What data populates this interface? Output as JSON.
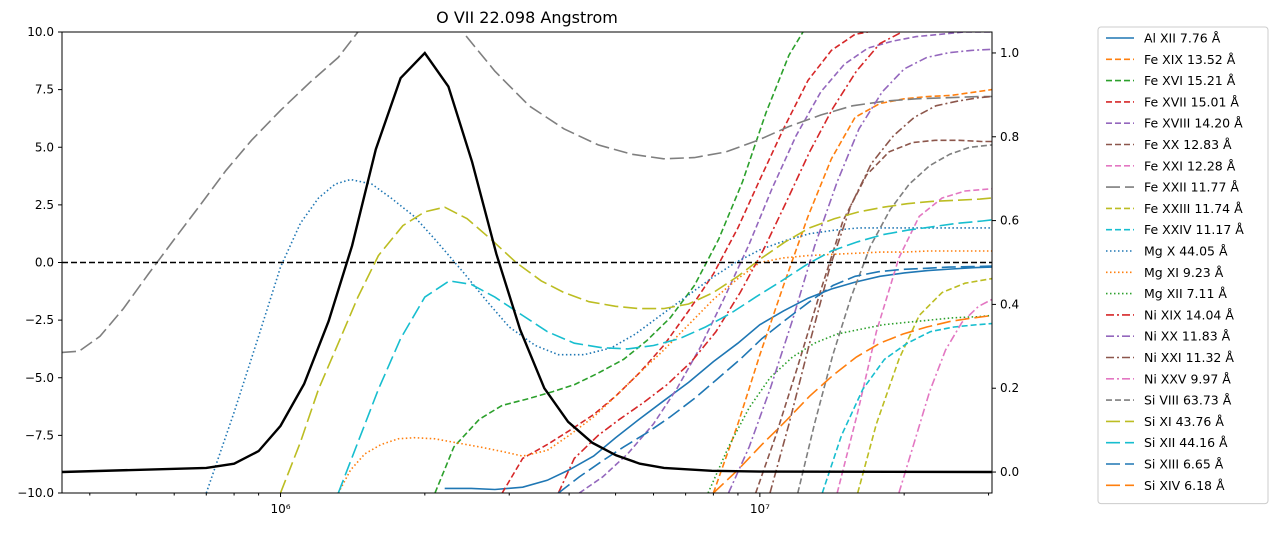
{
  "chart_data": {
    "type": "line",
    "title": "O VII 22.098 Angstrom",
    "xlabel": "",
    "ylabel": "",
    "xscale": "log",
    "xlim": [
      350000,
      30500000
    ],
    "ylim": [
      -10,
      10
    ],
    "y2lim": [
      -0.05,
      1.05
    ],
    "grid": false,
    "legend_placement": "outside-right",
    "x_ticks": [
      {
        "value": 1000000,
        "label": "10⁶"
      },
      {
        "value": 10000000,
        "label": "10⁷"
      }
    ],
    "y_ticks": [
      {
        "value": -10,
        "label": "−10.0"
      },
      {
        "value": -7.5,
        "label": "−7.5"
      },
      {
        "value": -5,
        "label": "−5.0"
      },
      {
        "value": -2.5,
        "label": "−2.5"
      },
      {
        "value": 0,
        "label": "0.0"
      },
      {
        "value": 2.5,
        "label": "2.5"
      },
      {
        "value": 5,
        "label": "5.0"
      },
      {
        "value": 7.5,
        "label": "7.5"
      },
      {
        "value": 10,
        "label": "10.0"
      }
    ],
    "y2_ticks": [
      {
        "value": 0,
        "label": "0.0"
      },
      {
        "value": 0.2,
        "label": "0.2"
      },
      {
        "value": 0.4,
        "label": "0.4"
      },
      {
        "value": 0.6,
        "label": "0.6"
      },
      {
        "value": 0.8,
        "label": "0.8"
      },
      {
        "value": 1.0,
        "label": "1.0"
      }
    ],
    "reference_line": {
      "y": 0,
      "style": "dashed",
      "color": "#000000"
    },
    "contribution_function": {
      "axis": "right",
      "color": "#000000",
      "x": [
        350000,
        700000,
        800000,
        900000,
        1000000,
        1120000,
        1260000,
        1410000,
        1580000,
        1780000,
        2000000,
        2240000,
        2510000,
        2820000,
        3160000,
        3550000,
        3980000,
        4470000,
        5010000,
        5620000,
        6310000,
        7940000,
        10000000,
        30500000
      ],
      "values": [
        0.0,
        0.01,
        0.02,
        0.05,
        0.11,
        0.21,
        0.36,
        0.54,
        0.77,
        0.94,
        1.0,
        0.92,
        0.74,
        0.52,
        0.34,
        0.2,
        0.12,
        0.07,
        0.04,
        0.02,
        0.01,
        0.003,
        0.001,
        0.0
      ]
    },
    "series": [
      {
        "name": "Al XII 7.76 Å",
        "color": "#1f77b4",
        "dash": "solid",
        "x": [
          2200000,
          2500000,
          2800000,
          3200000,
          3600000,
          4000000,
          4500000,
          5000000,
          5600000,
          6300000,
          7100000,
          8000000,
          9000000,
          10000000,
          11200000,
          12600000,
          14100000,
          15800000,
          17800000,
          20000000,
          22400000,
          25100000,
          28200000,
          30500000
        ],
        "values": [
          -9.8,
          -9.8,
          -9.85,
          -9.75,
          -9.45,
          -9.0,
          -8.4,
          -7.6,
          -6.8,
          -6.0,
          -5.2,
          -4.3,
          -3.5,
          -2.7,
          -2.1,
          -1.55,
          -1.15,
          -0.85,
          -0.6,
          -0.45,
          -0.35,
          -0.28,
          -0.22,
          -0.2
        ]
      },
      {
        "name": "Fe XIX 13.52 Å",
        "color": "#ff7f0e",
        "dash": "dashed",
        "x": [
          8000000,
          9000000,
          10000000,
          11200000,
          12600000,
          14100000,
          15800000,
          17800000,
          20000000,
          22400000,
          25100000,
          28200000,
          30500000
        ],
        "values": [
          -10,
          -7.0,
          -4.0,
          -1.0,
          2.0,
          4.5,
          6.3,
          6.9,
          7.1,
          7.2,
          7.25,
          7.4,
          7.5
        ]
      },
      {
        "name": "Fe XVI 15.21 Å",
        "color": "#2ca02c",
        "dash": "dashed",
        "x": [
          2100000,
          2300000,
          2600000,
          2900000,
          3300000,
          3700000,
          4100000,
          4600000,
          5200000,
          5800000,
          6500000,
          7300000,
          8200000,
          9200000,
          10300000,
          11500000,
          12300000
        ],
        "values": [
          -10,
          -8.0,
          -6.8,
          -6.2,
          -5.9,
          -5.6,
          -5.3,
          -4.8,
          -4.2,
          -3.4,
          -2.4,
          -1.0,
          1.0,
          3.5,
          6.5,
          9.0,
          10.0
        ]
      },
      {
        "name": "Fe XVII 15.01 Å",
        "color": "#d62728",
        "dash": "dashed",
        "x": [
          2900000,
          3200000,
          3600000,
          4000000,
          4500000,
          5000000,
          5600000,
          6300000,
          7100000,
          8000000,
          9000000,
          10000000,
          11200000,
          12600000,
          14100000,
          15800000,
          16800000
        ],
        "values": [
          -10,
          -8.5,
          -7.9,
          -7.3,
          -6.6,
          -5.8,
          -4.8,
          -3.6,
          -2.1,
          -0.5,
          1.5,
          3.6,
          5.8,
          7.9,
          9.2,
          9.9,
          10
        ]
      },
      {
        "name": "Fe XVIII 14.20 Å",
        "color": "#9467bd",
        "dash": "dashed",
        "x": [
          4200000,
          4700000,
          5300000,
          6000000,
          6700000,
          7500000,
          8400000,
          9500000,
          10600000,
          11900000,
          13400000,
          15000000,
          16800000,
          18900000,
          21200000,
          23800000,
          26700000,
          30000000,
          30500000
        ],
        "values": [
          -10,
          -9.3,
          -8.3,
          -7.0,
          -5.5,
          -3.7,
          -1.6,
          0.8,
          3.2,
          5.5,
          7.4,
          8.6,
          9.3,
          9.6,
          9.8,
          9.9,
          10,
          10,
          10
        ]
      },
      {
        "name": "Fe XX 12.83 Å",
        "color": "#8c564b",
        "dash": "dashed",
        "x": [
          9800000,
          10800000,
          12000000,
          13400000,
          14900000,
          16700000,
          18600000,
          20800000,
          23200000,
          26000000,
          29000000,
          30500000
        ],
        "values": [
          -10,
          -7.5,
          -4.5,
          -1.2,
          1.8,
          3.8,
          4.8,
          5.2,
          5.3,
          5.3,
          5.25,
          5.25
        ]
      },
      {
        "name": "Fe XXI 12.28 Å",
        "color": "#e377c2",
        "dash": "dashed",
        "x": [
          14500000,
          16000000,
          17500000,
          19500000,
          21500000,
          24000000,
          26800000,
          30500000
        ],
        "values": [
          -10,
          -6.5,
          -3.0,
          0.2,
          2.0,
          2.8,
          3.1,
          3.2
        ]
      },
      {
        "name": "Fe XXII 11.77 Å",
        "color": "#7f7f7f",
        "dash": "longdash",
        "x": [
          350000,
          380000,
          420000,
          470000,
          530000,
          600000,
          680000,
          770000,
          870000,
          1000000,
          1150000,
          1320000,
          1450000,
          2000000,
          2400000,
          2800000,
          3300000,
          3900000,
          4600000,
          5400000,
          6300000,
          7300000,
          8500000,
          9900000,
          11500000,
          13400000,
          15600000,
          18200000,
          21200000,
          24700000,
          28800000,
          30500000
        ],
        "values": [
          -3.9,
          -3.85,
          -3.2,
          -2.0,
          -0.5,
          1.0,
          2.5,
          4.0,
          5.3,
          6.6,
          7.8,
          8.9,
          10.0,
          12.0,
          10.0,
          8.3,
          6.8,
          5.8,
          5.1,
          4.7,
          4.5,
          4.55,
          4.8,
          5.3,
          5.9,
          6.4,
          6.8,
          7.0,
          7.1,
          7.15,
          7.2,
          7.2
        ]
      },
      {
        "name": "Fe XXIII 11.74 Å",
        "color": "#bcbd22",
        "dash": "dashed",
        "x": [
          16000000,
          17500000,
          19500000,
          21500000,
          24000000,
          26800000,
          30500000
        ],
        "values": [
          -10,
          -7.0,
          -4.2,
          -2.3,
          -1.3,
          -0.9,
          -0.7
        ]
      },
      {
        "name": "Fe XXIV 11.17 Å",
        "color": "#17becf",
        "dash": "dashed",
        "x": [
          13500000,
          14800000,
          16400000,
          18200000,
          20300000,
          22700000,
          25400000,
          28400000,
          30500000
        ],
        "values": [
          -10,
          -7.5,
          -5.5,
          -4.2,
          -3.5,
          -3.0,
          -2.8,
          -2.7,
          -2.65
        ]
      },
      {
        "name": "Mg X 44.05 Å",
        "color": "#1f77b4",
        "dash": "dotted",
        "x": [
          700000,
          800000,
          900000,
          1000000,
          1100000,
          1200000,
          1300000,
          1400000,
          1550000,
          1700000,
          1900000,
          2100000,
          2400000,
          2700000,
          3000000,
          3400000,
          3800000,
          4300000,
          4900000,
          5500000,
          6200000,
          7000000,
          7900000,
          8900000,
          10000000,
          11300000,
          12700000,
          14300000,
          16100000,
          18100000,
          20400000,
          23000000,
          25900000,
          29200000,
          30500000
        ],
        "values": [
          -10,
          -6.5,
          -3.2,
          -0.2,
          1.7,
          2.8,
          3.4,
          3.6,
          3.4,
          2.8,
          2.0,
          1.0,
          -0.4,
          -1.7,
          -2.8,
          -3.6,
          -4.0,
          -4.0,
          -3.7,
          -3.1,
          -2.3,
          -1.5,
          -0.7,
          0.0,
          0.55,
          0.95,
          1.25,
          1.4,
          1.5,
          1.5,
          1.5,
          1.5,
          1.5,
          1.5,
          1.5
        ]
      },
      {
        "name": "Mg XI 9.23 Å",
        "color": "#ff7f0e",
        "dash": "dotted",
        "x": [
          1320000,
          1400000,
          1500000,
          1620000,
          1760000,
          1900000,
          2100000,
          2300000,
          2600000,
          2900000,
          3200000,
          3600000,
          4000000,
          4500000,
          5000000,
          5600000,
          6300000,
          7100000,
          8000000,
          9000000,
          10000000,
          11200000,
          12600000,
          14100000,
          15800000,
          17800000,
          20000000,
          22400000,
          25100000,
          28200000,
          30500000
        ],
        "values": [
          -10,
          -9.0,
          -8.3,
          -7.9,
          -7.65,
          -7.6,
          -7.65,
          -7.8,
          -8.0,
          -8.2,
          -8.4,
          -8.15,
          -7.5,
          -6.7,
          -5.8,
          -4.8,
          -3.8,
          -2.7,
          -1.6,
          -0.7,
          0.0,
          0.2,
          0.3,
          0.35,
          0.4,
          0.45,
          0.45,
          0.5,
          0.5,
          0.5,
          0.5
        ]
      },
      {
        "name": "Mg XII 7.11 Å",
        "color": "#2ca02c",
        "dash": "dotted",
        "x": [
          7800000,
          8600000,
          9500000,
          10500000,
          11700000,
          13000000,
          14500000,
          16200000,
          18100000,
          20200000,
          22600000,
          25300000,
          28400000,
          30500000
        ],
        "values": [
          -10,
          -8.0,
          -6.3,
          -5.0,
          -4.1,
          -3.5,
          -3.1,
          -2.9,
          -2.7,
          -2.6,
          -2.5,
          -2.4,
          -2.35,
          -2.3
        ]
      },
      {
        "name": "Ni XIX 14.04 Å",
        "color": "#d62728",
        "dash": "dashdot",
        "x": [
          3800000,
          4100000,
          4600000,
          5100000,
          5700000,
          6400000,
          7200000,
          8100000,
          9100000,
          10200000,
          11400000,
          12700000,
          14200000,
          15900000,
          17800000,
          19800000
        ],
        "values": [
          -10,
          -8.5,
          -7.5,
          -6.8,
          -6.1,
          -5.3,
          -4.3,
          -3.0,
          -1.3,
          0.6,
          2.7,
          4.8,
          6.7,
          8.3,
          9.5,
          10
        ]
      },
      {
        "name": "Ni XX 11.83 Å",
        "color": "#9467bd",
        "dash": "dashdot",
        "x": [
          8600000,
          9500000,
          10500000,
          11700000,
          13000000,
          14500000,
          16100000,
          18000000,
          20000000,
          22300000,
          24800000,
          27600000,
          30500000
        ],
        "values": [
          -10,
          -8.0,
          -5.5,
          -2.5,
          0.7,
          3.5,
          5.8,
          7.4,
          8.4,
          8.9,
          9.1,
          9.2,
          9.25
        ]
      },
      {
        "name": "Ni XXI 11.32 Å",
        "color": "#8c564b",
        "dash": "dashdot",
        "x": [
          10500000,
          11500000,
          12700000,
          14000000,
          15500000,
          17100000,
          19000000,
          21000000,
          23300000,
          25800000,
          28600000,
          30500000
        ],
        "values": [
          -10,
          -7.0,
          -3.5,
          -0.2,
          2.5,
          4.3,
          5.5,
          6.3,
          6.8,
          7.0,
          7.15,
          7.2
        ]
      },
      {
        "name": "Ni XXV 9.97 Å",
        "color": "#e377c2",
        "dash": "dashdot",
        "x": [
          19500000,
          21000000,
          22600000,
          24400000,
          26400000,
          28600000,
          30500000
        ],
        "values": [
          -10,
          -7.8,
          -5.6,
          -3.8,
          -2.6,
          -1.9,
          -1.6
        ]
      },
      {
        "name": "Si VIII 63.73 Å",
        "color": "#7f7f7f",
        "dash": "dashed",
        "x": [
          12000000,
          13000000,
          14200000,
          15500000,
          17000000,
          18700000,
          20500000,
          22600000,
          24900000,
          27400000,
          30500000
        ],
        "values": [
          -10,
          -7.0,
          -4.0,
          -1.5,
          0.7,
          2.3,
          3.4,
          4.2,
          4.7,
          5.0,
          5.1
        ]
      },
      {
        "name": "Si XI 43.76 Å",
        "color": "#bcbd22",
        "dash": "longdash",
        "x": [
          1000000,
          1100000,
          1200000,
          1320000,
          1450000,
          1600000,
          1800000,
          2000000,
          2200000,
          2450000,
          2750000,
          3100000,
          3500000,
          3900000,
          4400000,
          5000000,
          5600000,
          6300000,
          7100000,
          8000000,
          9000000,
          10100000,
          11300000,
          12700000,
          14300000,
          16100000,
          18100000,
          20300000,
          22800000,
          25600000,
          28800000,
          30500000
        ],
        "values": [
          -10,
          -7.8,
          -5.5,
          -3.5,
          -1.5,
          0.3,
          1.6,
          2.2,
          2.4,
          1.9,
          1.0,
          0.0,
          -0.8,
          -1.3,
          -1.7,
          -1.9,
          -2.0,
          -2.0,
          -1.8,
          -1.3,
          -0.6,
          0.2,
          0.9,
          1.5,
          1.9,
          2.2,
          2.4,
          2.55,
          2.65,
          2.7,
          2.75,
          2.8
        ]
      },
      {
        "name": "Si XII 44.16 Å",
        "color": "#17becf",
        "dash": "longdash",
        "x": [
          1320000,
          1450000,
          1600000,
          1780000,
          2000000,
          2250000,
          2500000,
          2800000,
          3200000,
          3600000,
          4100000,
          4700000,
          5300000,
          6000000,
          6800000,
          7700000,
          8700000,
          9800000,
          11100000,
          12500000,
          14100000,
          16000000,
          18000000,
          20300000,
          22900000,
          25800000,
          29100000,
          30500000
        ],
        "values": [
          -10,
          -7.8,
          -5.5,
          -3.3,
          -1.5,
          -0.8,
          -0.95,
          -1.5,
          -2.3,
          -3.0,
          -3.5,
          -3.7,
          -3.75,
          -3.6,
          -3.3,
          -2.8,
          -2.2,
          -1.5,
          -0.8,
          -0.1,
          0.5,
          0.9,
          1.2,
          1.4,
          1.55,
          1.7,
          1.8,
          1.85
        ]
      },
      {
        "name": "Si XIII 6.65 Å",
        "color": "#1f77b4",
        "dash": "longdash",
        "x": [
          3800000,
          4200000,
          4700000,
          5200000,
          5800000,
          6500000,
          7300000,
          8100000,
          9100000,
          10100000,
          11300000,
          12700000,
          14200000,
          15800000,
          17700000,
          19800000,
          22200000,
          24800000,
          27700000,
          30500000
        ],
        "values": [
          -10,
          -9.3,
          -8.6,
          -8.0,
          -7.4,
          -6.7,
          -5.9,
          -5.1,
          -4.2,
          -3.3,
          -2.5,
          -1.7,
          -1.0,
          -0.6,
          -0.4,
          -0.3,
          -0.25,
          -0.2,
          -0.18,
          -0.15
        ]
      },
      {
        "name": "Si XIV 6.18 Å",
        "color": "#ff7f0e",
        "dash": "longdash",
        "x": [
          8000000,
          9000000,
          10100000,
          11300000,
          12700000,
          14200000,
          15900000,
          17800000,
          19900000,
          22300000,
          25000000,
          28000000,
          30500000
        ],
        "values": [
          -10,
          -9.0,
          -7.9,
          -6.9,
          -5.8,
          -4.9,
          -4.1,
          -3.5,
          -3.1,
          -2.8,
          -2.55,
          -2.4,
          -2.3
        ]
      }
    ]
  }
}
